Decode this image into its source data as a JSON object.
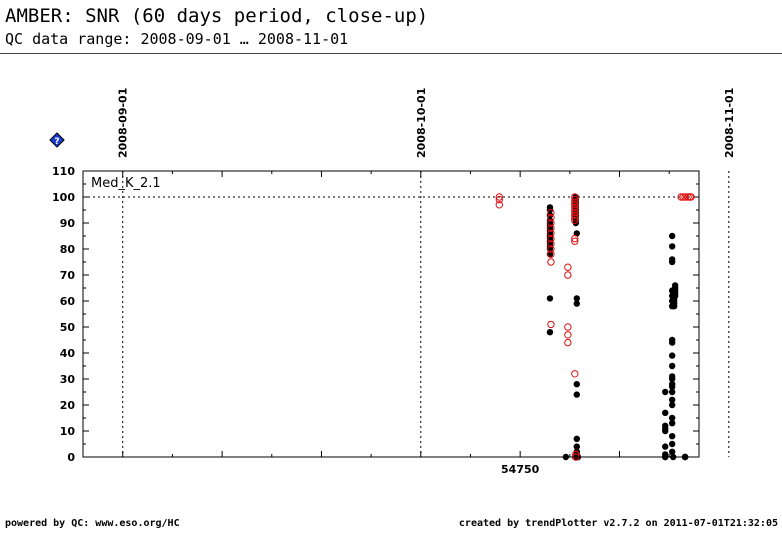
{
  "header": {
    "title": "AMBER: SNR (60 days period, close-up)",
    "subtitle": "QC data range: 2008-09-01 … 2008-11-01"
  },
  "footer": {
    "left": "powered by QC: www.eso.org/HC",
    "right": "created by trendPlotter v2.7.2 on 2011-07-01T21:32:05"
  },
  "help_icon": {
    "label": "?",
    "color": "#1a3ccc"
  },
  "chart_data": {
    "type": "scatter",
    "title": "",
    "xlabel": "",
    "ylabel": "",
    "panel_label": "Med_K_2.1",
    "xlim": [
      54706,
      54768
    ],
    "ylim": [
      0,
      110
    ],
    "ytick_labels": [
      "0",
      "10",
      "20",
      "30",
      "40",
      "50",
      "60",
      "70",
      "80",
      "90",
      "100",
      "110"
    ],
    "x_tick_labels": [
      {
        "x": 54750,
        "label": "54750"
      }
    ],
    "date_markers": [
      {
        "x": 54710,
        "label": "2008-09-01"
      },
      {
        "x": 54740,
        "label": "2008-10-01"
      },
      {
        "x": 54771,
        "label": "2008-11-01"
      }
    ],
    "reference_line": 100,
    "colors": {
      "filled": "#000000",
      "open": "#dd1111",
      "reference": "#000000"
    },
    "series": [
      {
        "style": "filled",
        "x": [
          54753.0,
          54753.0,
          54753.0,
          54753.0,
          54753.0,
          54753.0,
          54753.0,
          54753.0,
          54753.0,
          54753.0,
          54753.0,
          54753.0,
          54753.0,
          54753.0,
          54753.0,
          54753.0,
          54753.0,
          54753.0,
          54754.6,
          54755.6,
          54755.6,
          54755.6,
          54755.6,
          54755.6,
          54755.6,
          54755.6,
          54755.6,
          54755.6,
          54755.6,
          54755.6,
          54755.7,
          54755.7,
          54755.7,
          54755.7,
          54755.7,
          54755.7,
          54755.7,
          54755.7,
          54755.7,
          54755.7,
          54755.7,
          54755.7,
          54755.7,
          54755.7,
          54755.8,
          54755.8,
          54755.8,
          54755.8,
          54755.8,
          54755.8,
          54764.6,
          54764.6,
          54764.6,
          54764.6,
          54764.6,
          54764.6,
          54764.6,
          54764.6,
          54764.6,
          54764.6,
          54765.3,
          54765.3,
          54765.3,
          54765.3,
          54765.3,
          54765.3,
          54765.3,
          54765.3,
          54765.3,
          54765.3,
          54765.3,
          54765.3,
          54765.3,
          54765.3,
          54765.3,
          54765.3,
          54765.3,
          54765.3,
          54765.3,
          54765.3,
          54765.3,
          54765.3,
          54765.3,
          54765.3,
          54765.4,
          54765.5,
          54765.5,
          54765.5,
          54765.5,
          54765.5,
          54765.5,
          54765.6,
          54765.6,
          54765.6,
          54765.6,
          54765.6,
          54766.6,
          54766.6,
          54766.6
        ],
        "y": [
          96,
          95,
          93,
          91,
          90,
          89,
          88,
          87,
          86,
          85,
          84,
          83,
          82,
          81,
          80,
          78,
          61,
          48,
          0,
          100,
          99,
          98,
          97,
          96,
          95,
          94,
          93,
          92,
          91,
          90,
          86,
          61,
          59,
          28,
          24,
          7,
          4,
          2,
          1,
          0,
          0,
          0,
          0,
          1,
          0,
          0,
          0,
          0,
          0,
          0,
          25,
          17,
          12,
          11,
          10,
          4,
          1,
          0,
          0,
          0,
          85,
          81,
          76,
          75,
          64,
          62,
          60,
          58,
          45,
          44,
          39,
          35,
          31,
          30,
          28,
          27,
          25,
          22,
          20,
          15,
          13,
          8,
          5,
          2,
          0,
          63,
          62,
          61,
          60,
          59,
          58,
          66,
          65,
          64,
          63,
          62,
          0,
          0,
          0
        ]
      },
      {
        "style": "open",
        "x": [
          54747.9,
          54747.9,
          54747.9,
          54753.1,
          54753.1,
          54753.1,
          54753.1,
          54753.1,
          54753.1,
          54753.1,
          54753.1,
          54753.1,
          54753.1,
          54753.1,
          54754.8,
          54754.8,
          54754.8,
          54754.8,
          54754.8,
          54755.5,
          54755.5,
          54755.5,
          54755.5,
          54755.5,
          54755.5,
          54755.5,
          54755.5,
          54755.5,
          54755.5,
          54755.5,
          54755.5,
          54755.5,
          54755.6,
          54755.6,
          54755.6,
          54755.6,
          54766.2,
          54766.4,
          54766.6,
          54766.9,
          54767.1,
          54767.2
        ],
        "y": [
          100,
          99,
          97,
          94,
          92,
          90,
          88,
          86,
          84,
          82,
          80,
          78,
          75,
          51,
          73,
          70,
          50,
          47,
          44,
          100,
          99,
          98,
          97,
          96,
          95,
          94,
          93,
          92,
          91,
          84,
          83,
          32,
          1,
          0,
          0,
          1,
          100,
          100,
          100,
          100,
          100,
          100
        ]
      }
    ]
  }
}
